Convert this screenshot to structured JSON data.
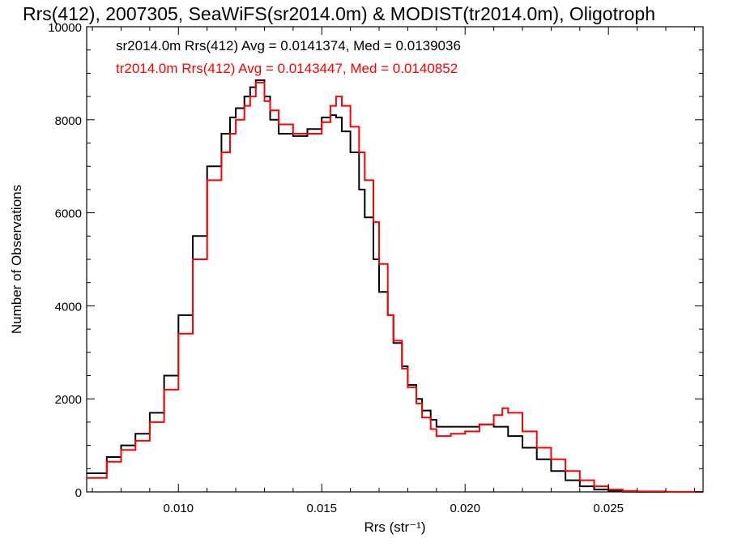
{
  "chart_data": {
    "type": "line",
    "title": "Rrs(412), 2007305, SeaWiFS(sr2014.0m) & MODIST(tr2014.0m), Oligotroph",
    "xlabel": "Rrs (str⁻¹)",
    "ylabel": "Number of Observations",
    "xlim": [
      0.0068,
      0.0283
    ],
    "ylim": [
      0,
      10000
    ],
    "x_ticks": [
      0.01,
      0.015,
      0.02,
      0.025
    ],
    "x_tick_labels": [
      "0.010",
      "0.015",
      "0.020",
      "0.025"
    ],
    "y_ticks": [
      0,
      2000,
      4000,
      6000,
      8000,
      10000
    ],
    "y_tick_labels": [
      "0",
      "2000",
      "4000",
      "6000",
      "8000",
      "10000"
    ],
    "grid": false,
    "legend_position": "top-left",
    "series": [
      {
        "name": "sr2014.0m Rrs(412) Avg = 0.0141374, Med = 0.0139036",
        "color": "#000000",
        "x": [
          0.0068,
          0.0075,
          0.008,
          0.0085,
          0.009,
          0.0095,
          0.01,
          0.0105,
          0.011,
          0.0115,
          0.0118,
          0.012,
          0.0123,
          0.0125,
          0.0127,
          0.013,
          0.0132,
          0.0135,
          0.014,
          0.0145,
          0.015,
          0.0153,
          0.0155,
          0.0157,
          0.016,
          0.0163,
          0.0165,
          0.0168,
          0.017,
          0.0173,
          0.0175,
          0.0178,
          0.018,
          0.0183,
          0.0185,
          0.0188,
          0.019,
          0.0195,
          0.02,
          0.0205,
          0.021,
          0.0215,
          0.022,
          0.0225,
          0.023,
          0.0235,
          0.024,
          0.0245,
          0.025,
          0.0255,
          0.026,
          0.027,
          0.0283
        ],
        "y": [
          400,
          750,
          1000,
          1250,
          1700,
          2500,
          3800,
          5500,
          7000,
          7700,
          8050,
          8250,
          8500,
          8700,
          8850,
          8500,
          8000,
          7700,
          7650,
          7800,
          8050,
          8100,
          8050,
          7750,
          7300,
          6500,
          5900,
          5000,
          4300,
          3800,
          3200,
          2700,
          2300,
          2000,
          1750,
          1550,
          1400,
          1400,
          1400,
          1450,
          1400,
          1200,
          950,
          700,
          450,
          250,
          120,
          50,
          20,
          5,
          0,
          0,
          0
        ]
      },
      {
        "name": "tr2014.0m Rrs(412) Avg = 0.0143447, Med = 0.0140852",
        "color": "#ff0000",
        "x": [
          0.0068,
          0.0075,
          0.008,
          0.0085,
          0.009,
          0.0095,
          0.01,
          0.0105,
          0.011,
          0.0115,
          0.0118,
          0.012,
          0.0123,
          0.0125,
          0.0127,
          0.013,
          0.0132,
          0.0135,
          0.014,
          0.0145,
          0.015,
          0.0153,
          0.0155,
          0.0157,
          0.016,
          0.0163,
          0.0165,
          0.0168,
          0.017,
          0.0173,
          0.0175,
          0.0178,
          0.018,
          0.0183,
          0.0185,
          0.0188,
          0.019,
          0.0195,
          0.02,
          0.0205,
          0.021,
          0.0213,
          0.0215,
          0.022,
          0.0225,
          0.023,
          0.0235,
          0.024,
          0.0245,
          0.025,
          0.0255,
          0.026,
          0.027,
          0.0283
        ],
        "y": [
          300,
          650,
          900,
          1100,
          1500,
          2200,
          3400,
          5000,
          6700,
          7300,
          7700,
          8000,
          8300,
          8500,
          8800,
          8400,
          8200,
          7900,
          7700,
          7700,
          7950,
          8300,
          8500,
          8300,
          7850,
          7300,
          6700,
          5800,
          4900,
          3800,
          3250,
          2650,
          2250,
          1900,
          1600,
          1350,
          1200,
          1250,
          1300,
          1450,
          1650,
          1800,
          1700,
          1300,
          950,
          700,
          450,
          250,
          120,
          50,
          20,
          10,
          0,
          0
        ]
      }
    ]
  }
}
